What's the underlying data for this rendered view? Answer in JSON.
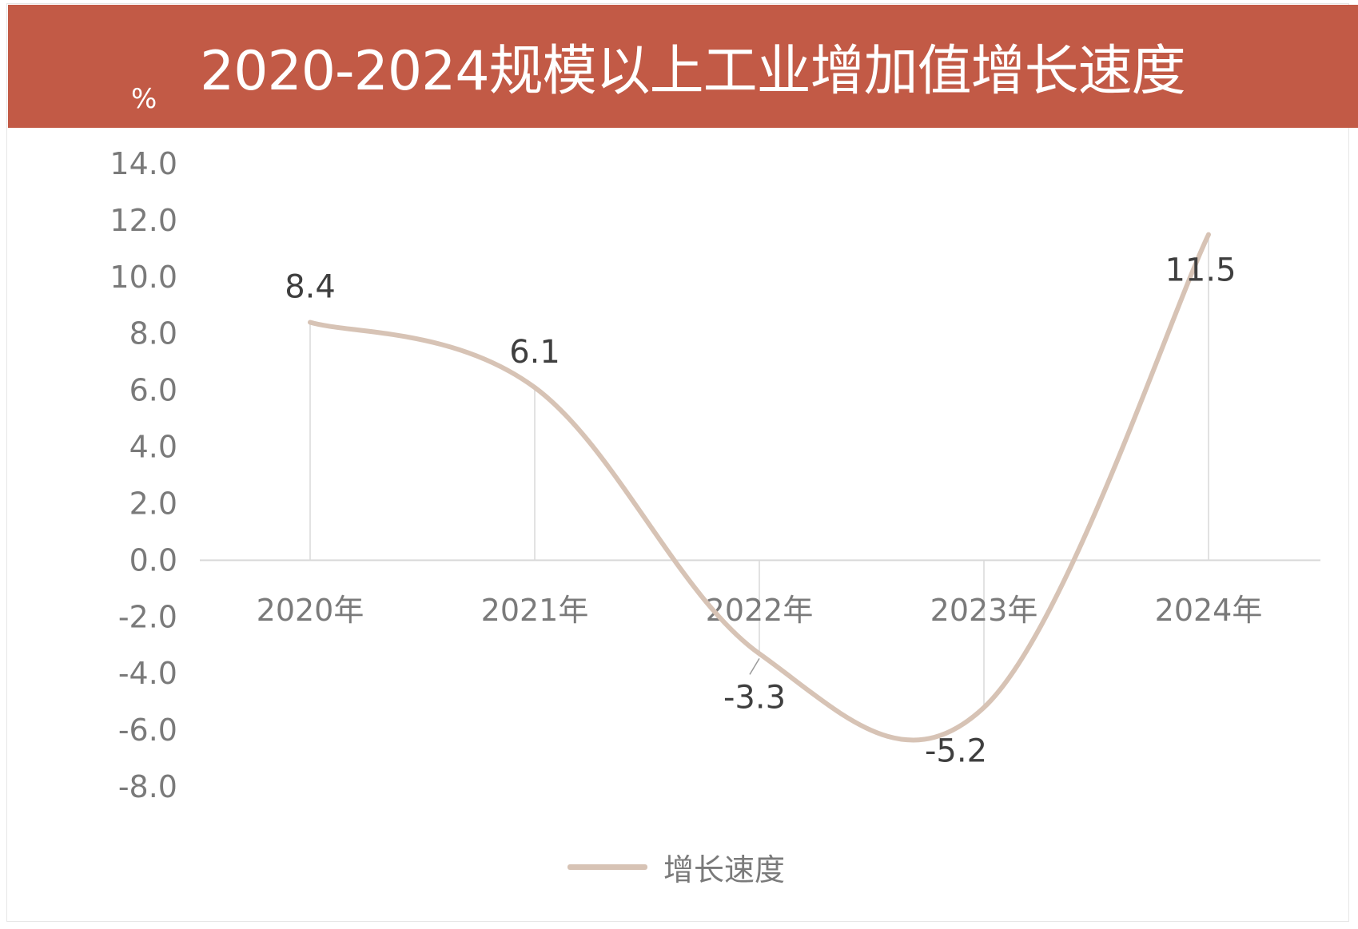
{
  "chart_data": {
    "type": "line",
    "title": "2020-2024规模以上工业增加值增长速度",
    "ylabel": "%",
    "categories": [
      "2020年",
      "2021年",
      "2022年",
      "2023年",
      "2024年"
    ],
    "series": [
      {
        "name": "增长速度",
        "values": [
          8.4,
          6.1,
          -3.3,
          -5.2,
          11.5
        ],
        "labels": [
          "8.4",
          "6.1",
          "-3.3",
          "-5.2",
          "11.5"
        ]
      }
    ],
    "yticks": [
      "14.0",
      "12.0",
      "10.0",
      "8.0",
      "6.0",
      "4.0",
      "2.0",
      "0.0",
      "-2.0",
      "-4.0",
      "-6.0",
      "-8.0"
    ],
    "ylim": [
      -8,
      14
    ],
    "smooth": true,
    "grid": false,
    "legend": "bottom",
    "colors": {
      "title_bar": "#c25a46",
      "line": "#d7c3b5",
      "axis_text": "#7a7a7a",
      "data_label": "#3f3f3f",
      "drop_lines": "#d9d9d9"
    }
  }
}
